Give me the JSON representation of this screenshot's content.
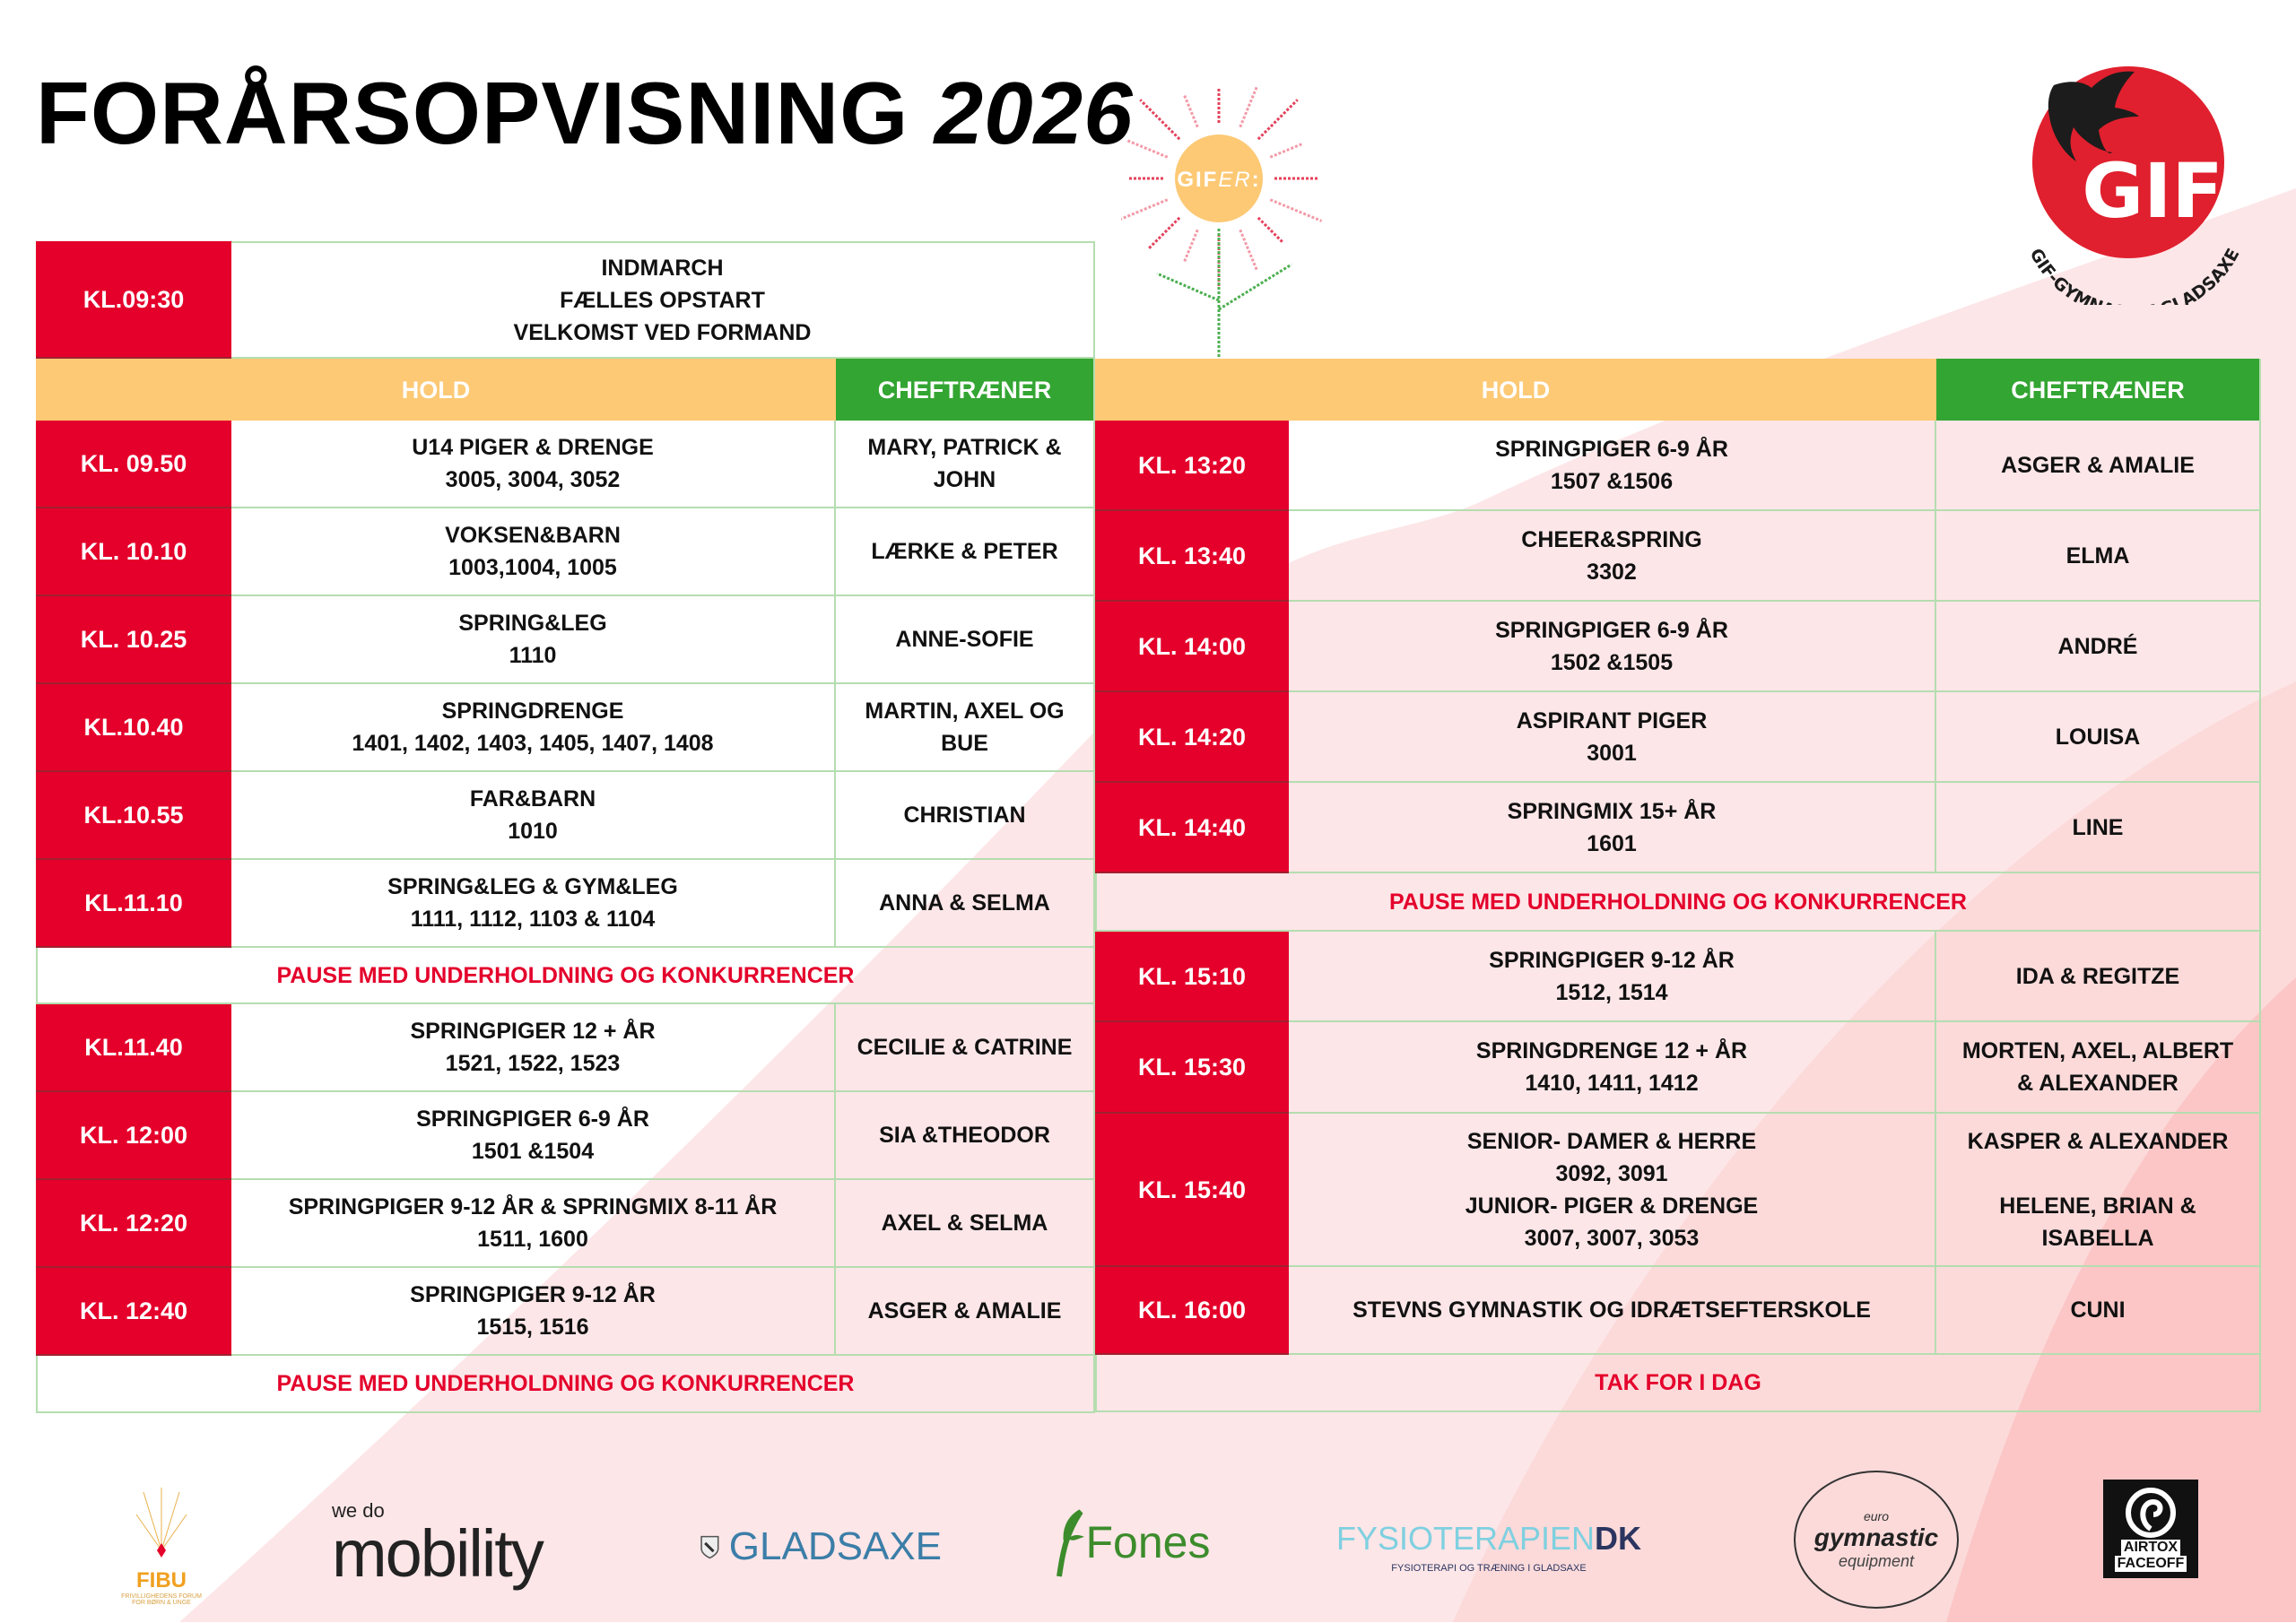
{
  "title": {
    "main": "FORÅRSOPVISNING",
    "year": "2026"
  },
  "colors": {
    "time_bg": "#e4002b",
    "hold_header": "#fdc975",
    "chef_header": "#33a532",
    "pause_text": "#e4002b",
    "grid": "#b5ddb0",
    "bg_pink": "#fde6e8",
    "bg_pink_dark": "#fcc6c6"
  },
  "sun_logo": {
    "text_main": "GIF",
    "text_italic": "ER",
    "text_colon": ":"
  },
  "gif_logo": {
    "letters": "GIF",
    "arc_text": "GIF-GYMNASTIK GLADSAXE",
    "icon": "swallow-bird-icon"
  },
  "intro": {
    "time": "KL.09:30",
    "lines": "INDMARCH\nFÆLLES OPSTART\nVELKOMST VED FORMAND"
  },
  "headers": {
    "hold": "HOLD",
    "chef": "CHEFTRÆNER"
  },
  "left_schedule": [
    {
      "time": "KL. 09.50",
      "hold": "U14 PIGER & DRENGE\n3005, 3004, 3052",
      "chef": "MARY, PATRICK &\nJOHN"
    },
    {
      "time": "KL. 10.10",
      "hold": "VOKSEN&BARN\n1003,1004, 1005",
      "chef": "LÆRKE & PETER"
    },
    {
      "time": "KL. 10.25",
      "hold": "SPRING&LEG\n1110",
      "chef": "ANNE-SOFIE"
    },
    {
      "time": "KL.10.40",
      "hold": "SPRINGDRENGE\n1401, 1402, 1403, 1405, 1407, 1408",
      "chef": "MARTIN, AXEL OG\nBUE"
    },
    {
      "time": "KL.10.55",
      "hold": "FAR&BARN\n1010",
      "chef": "CHRISTIAN"
    },
    {
      "time": "KL.11.10",
      "hold": "SPRING&LEG & GYM&LEG\n1111, 1112, 1103 & 1104",
      "chef": "ANNA & SELMA"
    },
    {
      "pause": "PAUSE MED UNDERHOLDNING OG KONKURRENCER"
    },
    {
      "time": "KL.11.40",
      "hold": "SPRINGPIGER 12 + ÅR\n1521, 1522, 1523",
      "chef": "CECILIE & CATRINE"
    },
    {
      "time": "KL. 12:00",
      "hold": "SPRINGPIGER 6-9 ÅR\n1501 &1504",
      "chef": "SIA &THEODOR"
    },
    {
      "time": "KL. 12:20",
      "hold": "SPRINGPIGER 9-12 ÅR & SPRINGMIX 8-11 ÅR\n1511, 1600",
      "chef": "AXEL & SELMA"
    },
    {
      "time": "KL. 12:40",
      "hold": "SPRINGPIGER 9-12 ÅR\n1515, 1516",
      "chef": "ASGER & AMALIE"
    },
    {
      "pause": "PAUSE MED UNDERHOLDNING OG KONKURRENCER"
    }
  ],
  "right_schedule": [
    {
      "time": "KL. 13:20",
      "hold": "SPRINGPIGER 6-9 ÅR\n1507 &1506",
      "chef": "ASGER & AMALIE"
    },
    {
      "time": "KL. 13:40",
      "hold": "CHEER&SPRING\n3302",
      "chef": "ELMA"
    },
    {
      "time": "KL. 14:00",
      "hold": "SPRINGPIGER 6-9 ÅR\n1502 &1505",
      "chef": "ANDRÉ"
    },
    {
      "time": "KL. 14:20",
      "hold": "ASPIRANT PIGER\n3001",
      "chef": "LOUISA"
    },
    {
      "time": "KL. 14:40",
      "hold": "SPRINGMIX 15+ ÅR\n1601",
      "chef": "LINE"
    },
    {
      "pause": "PAUSE MED UNDERHOLDNING OG KONKURRENCER"
    },
    {
      "time": "KL. 15:10",
      "hold": "SPRINGPIGER 9-12  ÅR\n1512, 1514",
      "chef": "IDA & REGITZE"
    },
    {
      "time": "KL. 15:30",
      "hold": "SPRINGDRENGE 12 + ÅR\n1410, 1411, 1412",
      "chef": "MORTEN, AXEL, ALBERT\n& ALEXANDER"
    },
    {
      "time": "KL. 15:40",
      "hold": "SENIOR- DAMER & HERRE\n3092, 3091\nJUNIOR- PIGER & DRENGE\n3007, 3007, 3053",
      "chef": "KASPER & ALEXANDER\n\nHELENE, BRIAN &\nISABELLA"
    },
    {
      "time": "KL. 16:00",
      "hold": "STEVNS GYMNASTIK OG IDRÆTSEFTERSKOLE",
      "chef": "CUNI"
    },
    {
      "pause": "TAK FOR I DAG"
    }
  ],
  "sponsors": [
    {
      "name": "FIBU",
      "sub": "FRIVILLIGHEDENS FORUM FOR BØRN & UNGE"
    },
    {
      "name": "mobility",
      "sub": "we do"
    },
    {
      "name": "GLADSAXE"
    },
    {
      "name": "Fones"
    },
    {
      "name": "FYSIOTERAPIEN",
      "name_suffix": "DK",
      "sub": "FYSIOTERAPI OG TRÆNING I GLADSAXE"
    },
    {
      "name": "gymnastic",
      "top": "euro",
      "sub": "equipment"
    },
    {
      "name": "AIRTOX",
      "sub": "FACEOFF"
    }
  ]
}
